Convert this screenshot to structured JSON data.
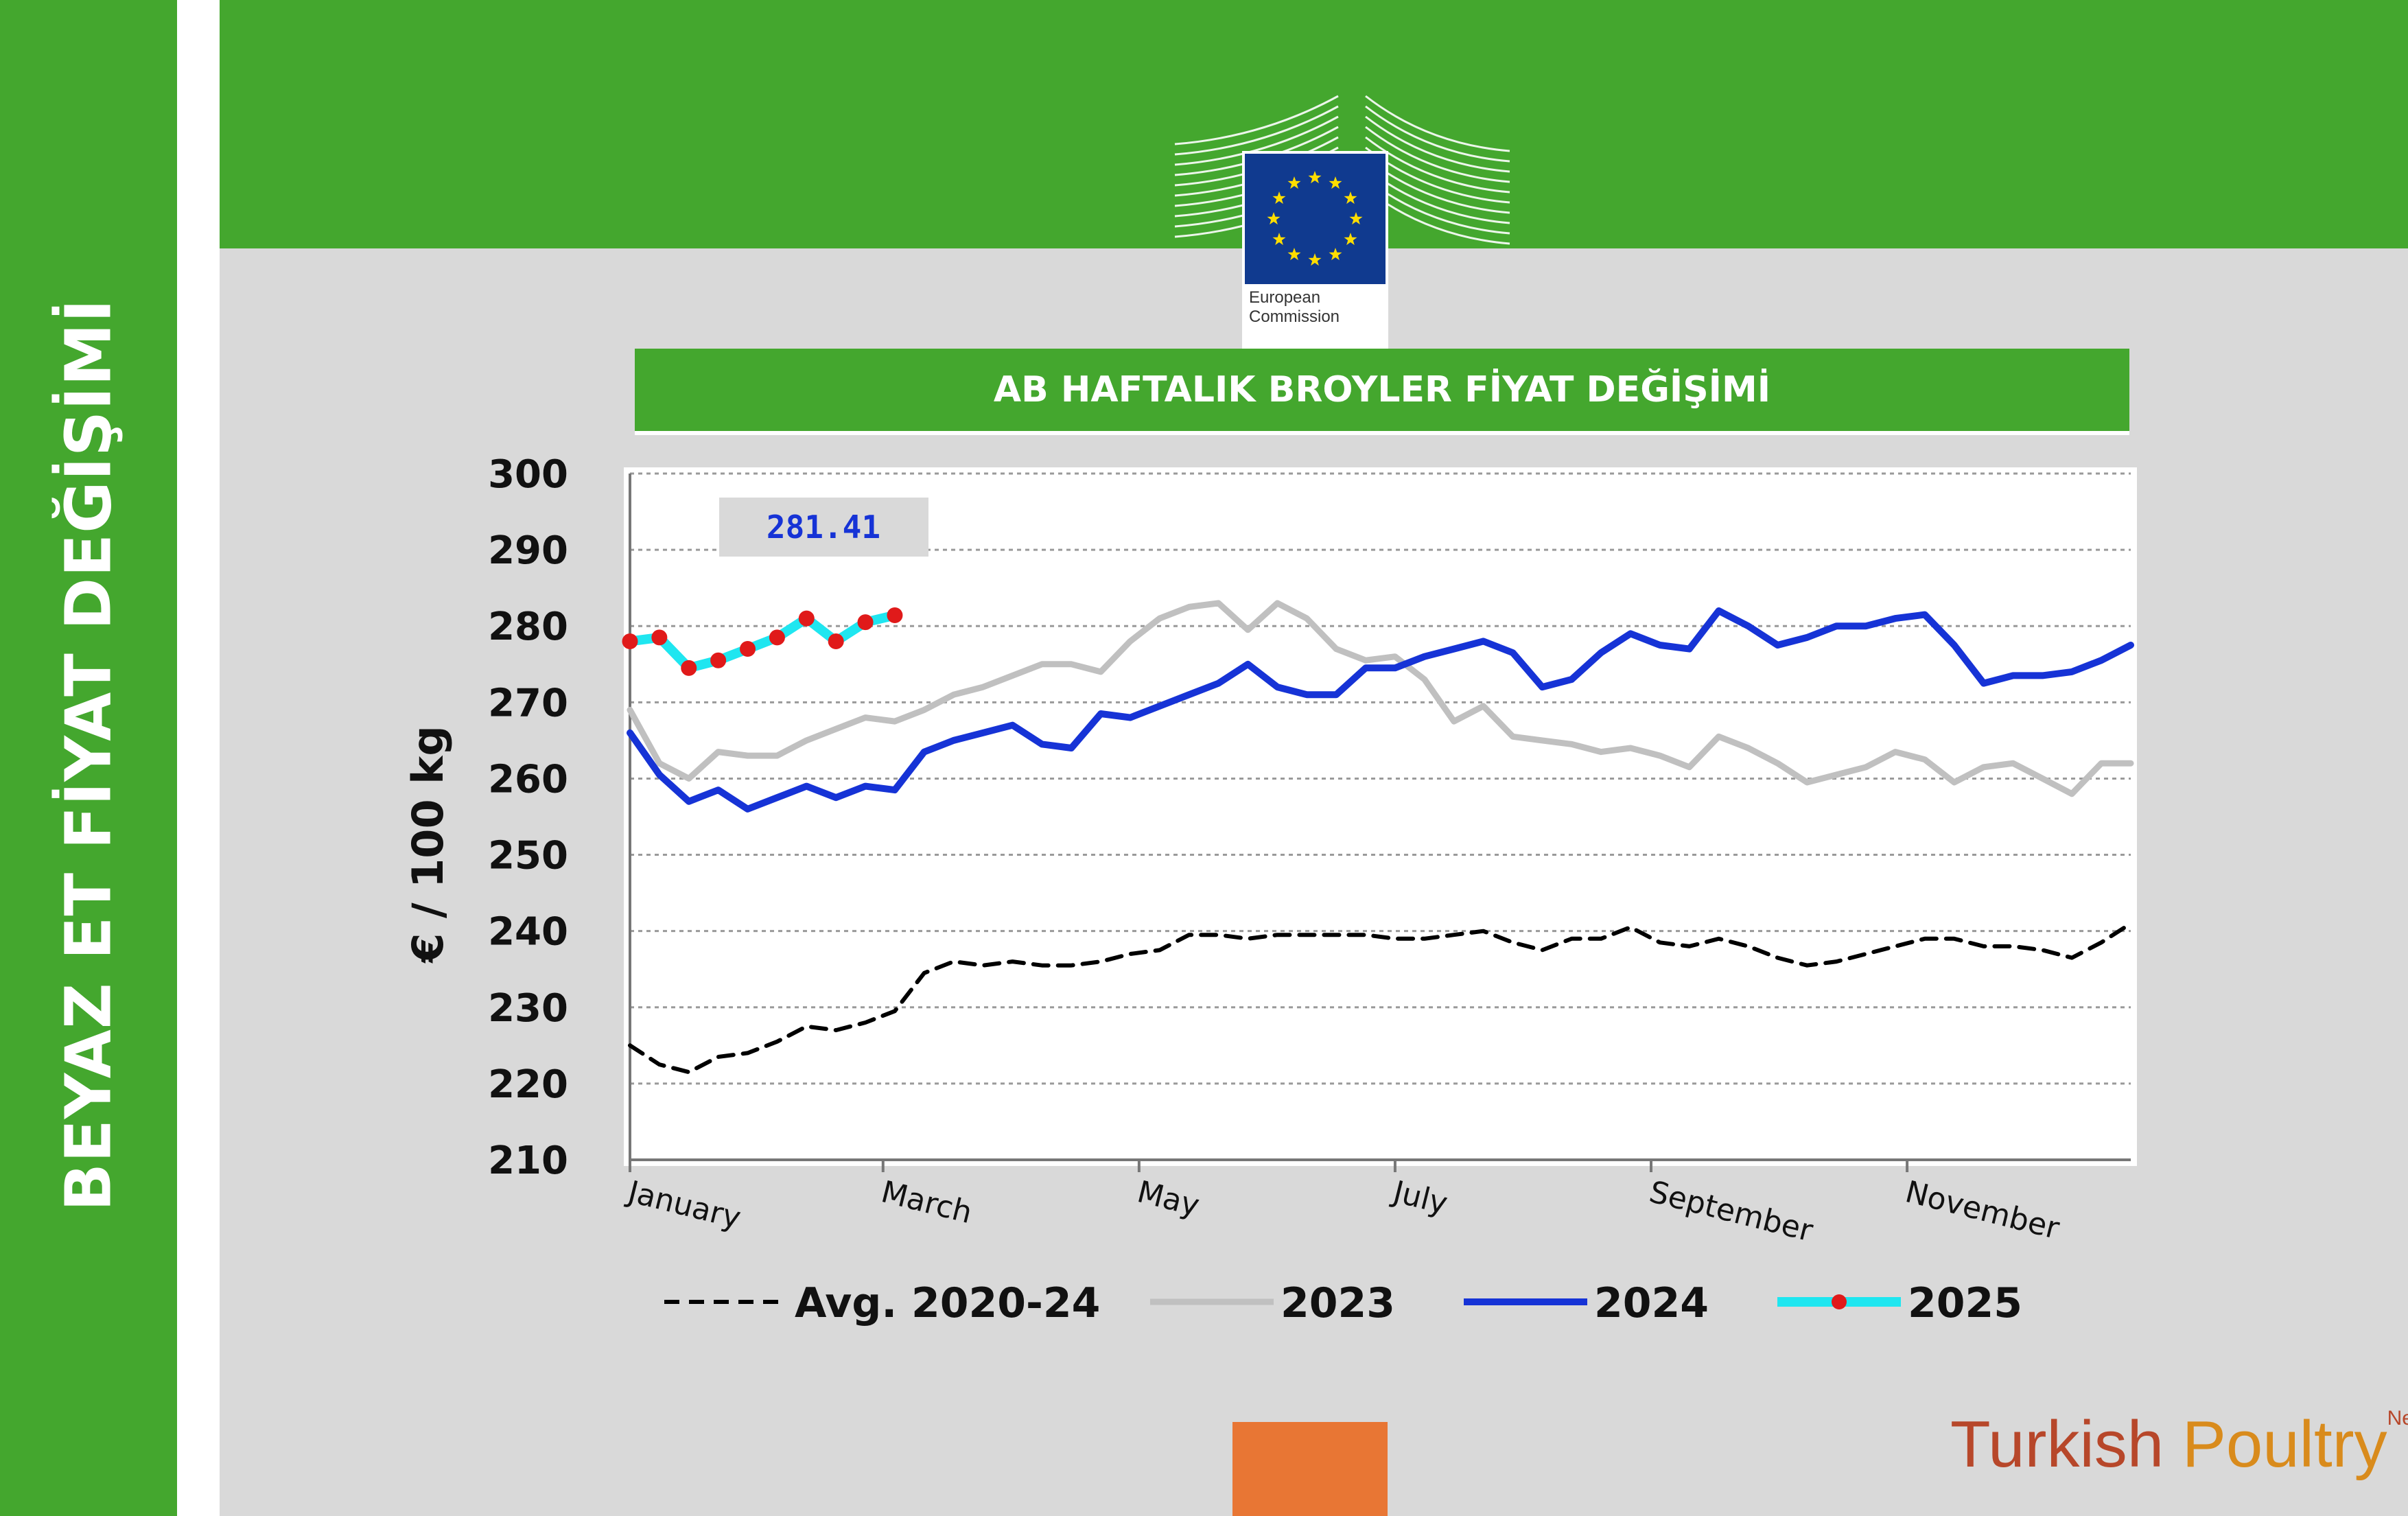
{
  "side_title": "BEYAZ ET FİYAT DEĞİŞİMİ",
  "logo": {
    "line1": "European",
    "line2": "Commission"
  },
  "brand": {
    "part1": "Turkish ",
    "part2": "Poultry",
    "part3": "Net"
  },
  "colors": {
    "green": "#44a72e",
    "orange": "#e87634",
    "avg": "#000000",
    "s2023": "#c0c0c0",
    "s2024": "#1633d6",
    "s2025_line": "#1fe6f0",
    "s2025_marker": "#e01a1a",
    "highlight_text": "#1633d6"
  },
  "chart_data": {
    "type": "line",
    "title": "AB HAFTALIK BROYLER FİYAT DEĞİŞİMİ",
    "ylabel": "€ / 100 kg",
    "xlabel": "",
    "ylim": [
      210,
      300
    ],
    "yticks": [
      300,
      290,
      280,
      270,
      260,
      250,
      240,
      230,
      220,
      210
    ],
    "x_range": [
      1,
      52
    ],
    "x_tick_labels": [
      {
        "label": "January",
        "week": 1
      },
      {
        "label": "March",
        "week": 9.6
      },
      {
        "label": "May",
        "week": 18.3
      },
      {
        "label": "July",
        "week": 27
      },
      {
        "label": "September",
        "week": 35.7
      },
      {
        "label": "November",
        "week": 44.4
      }
    ],
    "grid": true,
    "legend": "bottom",
    "highlight_value": "281.41",
    "series": [
      {
        "name": "Avg. 2020-24",
        "style": "dashed",
        "values": [
          225,
          222.5,
          221.5,
          223.5,
          224,
          225.5,
          227.5,
          227,
          228,
          229.5,
          234.5,
          236,
          235.5,
          236,
          235.5,
          235.5,
          236,
          237,
          237.5,
          239.5,
          239.5,
          239,
          239.5,
          239.5,
          239.5,
          239.5,
          239,
          239,
          239.5,
          240,
          238.5,
          237.5,
          239,
          239,
          240.5,
          238.5,
          238,
          239,
          238,
          236.5,
          235.5,
          236,
          237,
          238,
          239,
          239,
          238,
          238,
          237.5,
          236.5,
          238.5,
          241
        ]
      },
      {
        "name": "2023",
        "style": "solid",
        "values": [
          269,
          262,
          260,
          263.5,
          263,
          263,
          265,
          266.5,
          268,
          267.5,
          269,
          271,
          272,
          273.5,
          275,
          275,
          274,
          278,
          281,
          282.5,
          283,
          279.5,
          283,
          281,
          277,
          275.5,
          276,
          273,
          267.5,
          269.5,
          265.5,
          265,
          264.5,
          263.5,
          264,
          263,
          261.5,
          265.5,
          264,
          262,
          259.5,
          260.5,
          261.5,
          263.5,
          262.5,
          259.5,
          261.5,
          262,
          260,
          258,
          262,
          262
        ]
      },
      {
        "name": "2024",
        "style": "solid",
        "values": [
          266,
          260.5,
          257,
          258.5,
          256,
          257.5,
          259,
          257.5,
          259,
          258.5,
          263.5,
          265,
          266,
          267,
          264.5,
          264,
          268.5,
          268,
          269.5,
          271,
          272.5,
          275,
          272,
          271,
          271,
          274.5,
          274.5,
          276,
          277,
          278,
          276.5,
          272,
          273,
          276.5,
          279,
          277.5,
          277,
          282,
          280,
          277.5,
          278.5,
          280,
          280,
          281,
          281.5,
          277.5,
          272.5,
          273.5,
          273.5,
          274,
          275.5,
          277.5
        ]
      },
      {
        "name": "2025",
        "style": "marker",
        "values": [
          278,
          278.5,
          274.5,
          275.5,
          277,
          278.5,
          281,
          278,
          280.5,
          281.41
        ]
      }
    ]
  }
}
